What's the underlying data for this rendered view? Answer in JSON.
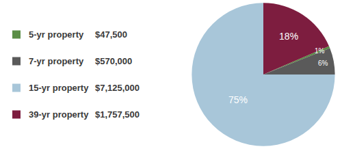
{
  "chart_data": {
    "type": "pie",
    "categories": [
      "5-yr property",
      "7-yr property",
      "15-yr property",
      "39-yr property"
    ],
    "values": [
      47500,
      570000,
      7125000,
      1757500
    ],
    "value_labels": [
      "$47,500",
      "$570,000",
      "$7,125,000",
      "$1,757,500"
    ],
    "percent_labels": [
      "1%",
      "6%",
      "75%",
      "18%"
    ],
    "colors": [
      "#5b8e46",
      "#5a5a5a",
      "#a8c6d9",
      "#7d1d3f"
    ],
    "data_labels": true,
    "legend": "left"
  }
}
